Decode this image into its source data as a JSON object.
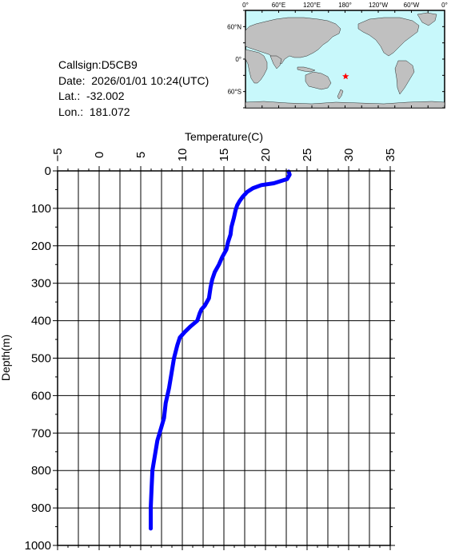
{
  "info": {
    "callsign": "Callsign:D5CB9",
    "date": "Date:  2026/01/01 10:24(UTC)",
    "lat": "Lat.:  -32.002",
    "lon": "Lon.:  181.072"
  },
  "map": {
    "top_labels": [
      "0°",
      "60°E",
      "120°E",
      "180°",
      "120°W",
      "60°W",
      "0°"
    ],
    "lat_labels": [
      "60°N",
      "0°",
      "60°S"
    ],
    "marker_lon": 181.072,
    "marker_lat": -32.002,
    "ocean_color": "#c8f8fb",
    "land_color": "#c0c0c0",
    "marker_color": "#ff0000"
  },
  "chart_data": {
    "type": "line",
    "xlabel": "Temperature(C)",
    "ylabel": "Depth(m)",
    "xlim": [
      -5,
      35
    ],
    "ylim": [
      0,
      1000
    ],
    "x_ticks": [
      "−5",
      "0",
      "5",
      "10",
      "15",
      "20",
      "25",
      "30",
      "35"
    ],
    "y_ticks": [
      "0",
      "100",
      "200",
      "300",
      "400",
      "500",
      "600",
      "700",
      "800",
      "900",
      "1000"
    ],
    "grid": true,
    "line_color": "#0000ff",
    "series": [
      {
        "points": [
          [
            22.8,
            2
          ],
          [
            22.9,
            10
          ],
          [
            22.6,
            22
          ],
          [
            21.0,
            33
          ],
          [
            19.5,
            38
          ],
          [
            18.5,
            46
          ],
          [
            17.8,
            56
          ],
          [
            17.3,
            68
          ],
          [
            16.9,
            80
          ],
          [
            16.6,
            92
          ],
          [
            16.4,
            105
          ],
          [
            16.2,
            125
          ],
          [
            15.9,
            150
          ],
          [
            15.8,
            170
          ],
          [
            15.5,
            190
          ],
          [
            15.3,
            210
          ],
          [
            14.8,
            230
          ],
          [
            14.4,
            250
          ],
          [
            13.9,
            270
          ],
          [
            13.6,
            290
          ],
          [
            13.4,
            310
          ],
          [
            13.2,
            340
          ],
          [
            12.7,
            360
          ],
          [
            12.3,
            370
          ],
          [
            12.1,
            380
          ],
          [
            11.8,
            400
          ],
          [
            11.0,
            415
          ],
          [
            10.3,
            430
          ],
          [
            9.7,
            445
          ],
          [
            9.4,
            465
          ],
          [
            9.0,
            500
          ],
          [
            8.7,
            540
          ],
          [
            8.4,
            580
          ],
          [
            8.0,
            620
          ],
          [
            7.8,
            660
          ],
          [
            7.4,
            690
          ],
          [
            7.0,
            720
          ],
          [
            6.7,
            760
          ],
          [
            6.4,
            800
          ],
          [
            6.3,
            850
          ],
          [
            6.2,
            900
          ],
          [
            6.2,
            955
          ]
        ]
      }
    ]
  }
}
